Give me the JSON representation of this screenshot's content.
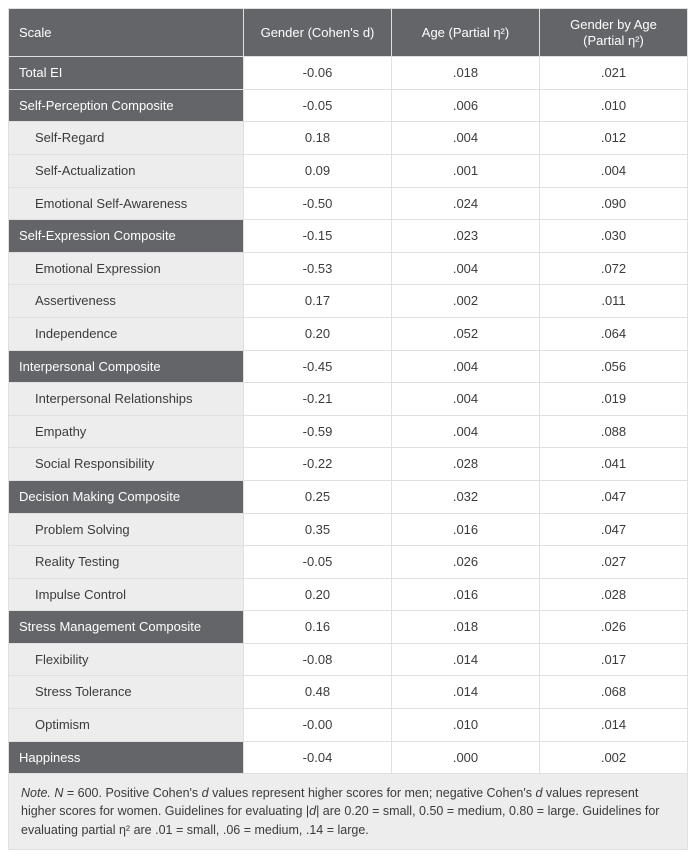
{
  "columns": {
    "scale": "Scale",
    "gender_html": "Gender (Cohen's <span class=\"i\">d</span>)",
    "age": "Age (Partial η²)",
    "gender_age_html": "Gender by Age<br>(Partial η²)"
  },
  "rows": [
    {
      "type": "header",
      "label": "Total EI",
      "gender": "-0.06",
      "age": ".018",
      "ga": ".021"
    },
    {
      "type": "header",
      "label": "Self-Perception Composite",
      "gender": "-0.05",
      "age": ".006",
      "ga": ".010"
    },
    {
      "type": "sub",
      "label": "Self-Regard",
      "gender": "0.18",
      "age": ".004",
      "ga": ".012"
    },
    {
      "type": "sub",
      "label": "Self-Actualization",
      "gender": "0.09",
      "age": ".001",
      "ga": ".004"
    },
    {
      "type": "sub",
      "label": "Emotional Self-Awareness",
      "gender": "-0.50",
      "age": ".024",
      "ga": ".090"
    },
    {
      "type": "header",
      "label": "Self-Expression Composite",
      "gender": "-0.15",
      "age": ".023",
      "ga": ".030"
    },
    {
      "type": "sub",
      "label": "Emotional Expression",
      "gender": "-0.53",
      "age": ".004",
      "ga": ".072"
    },
    {
      "type": "sub",
      "label": "Assertiveness",
      "gender": "0.17",
      "age": ".002",
      "ga": ".011"
    },
    {
      "type": "sub",
      "label": "Independence",
      "gender": "0.20",
      "age": ".052",
      "ga": ".064"
    },
    {
      "type": "header",
      "label": "Interpersonal Composite",
      "gender": "-0.45",
      "age": ".004",
      "ga": ".056"
    },
    {
      "type": "sub",
      "label": "Interpersonal Relationships",
      "gender": "-0.21",
      "age": ".004",
      "ga": ".019"
    },
    {
      "type": "sub",
      "label": "Empathy",
      "gender": "-0.59",
      "age": ".004",
      "ga": ".088"
    },
    {
      "type": "sub",
      "label": "Social Responsibility",
      "gender": "-0.22",
      "age": ".028",
      "ga": ".041"
    },
    {
      "type": "header",
      "label": "Decision Making Composite",
      "gender": "0.25",
      "age": ".032",
      "ga": ".047"
    },
    {
      "type": "sub",
      "label": "Problem Solving",
      "gender": "0.35",
      "age": ".016",
      "ga": ".047"
    },
    {
      "type": "sub",
      "label": "Reality Testing",
      "gender": "-0.05",
      "age": ".026",
      "ga": ".027"
    },
    {
      "type": "sub",
      "label": "Impulse Control",
      "gender": "0.20",
      "age": ".016",
      "ga": ".028"
    },
    {
      "type": "header",
      "label": "Stress Management Composite",
      "gender": "0.16",
      "age": ".018",
      "ga": ".026"
    },
    {
      "type": "sub",
      "label": "Flexibility",
      "gender": "-0.08",
      "age": ".014",
      "ga": ".017"
    },
    {
      "type": "sub",
      "label": "Stress Tolerance",
      "gender": "0.48",
      "age": ".014",
      "ga": ".068"
    },
    {
      "type": "sub",
      "label": "Optimism",
      "gender": "-0.00",
      "age": ".010",
      "ga": ".014"
    },
    {
      "type": "header",
      "label": "Happiness",
      "gender": "-0.04",
      "age": ".000",
      "ga": ".002"
    }
  ],
  "note_html": "<span class=\"i\">Note.</span> <span class=\"i\">N</span> = 600. Positive Cohen's <span class=\"i\">d</span> values represent higher scores for men; negative Cohen's <span class=\"i\">d</span> values represent higher scores for women. Guidelines for evaluating |<span class=\"i\">d</span>| are 0.20 = small, 0.50 = medium, 0.80 = large. Guidelines for evaluating partial η² are .01 = small, .06 = medium, .14 = large.",
  "styles": {
    "header_bg": "#636569",
    "header_text": "#ffffff",
    "sub_bg": "#ededed",
    "cell_bg": "#ffffff",
    "border": "#e0e0e0",
    "text": "#3b3b3b",
    "font_size_cell": 13,
    "font_size_note": 12.5
  }
}
